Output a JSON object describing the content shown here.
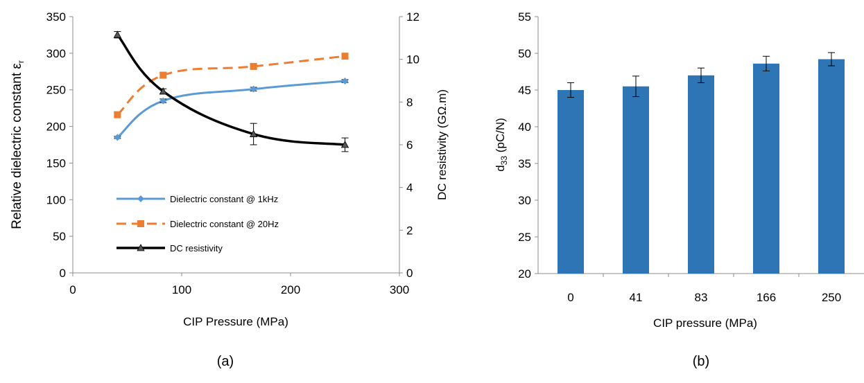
{
  "chart_data": [
    {
      "type": "line",
      "panel_label": "(a)",
      "xlabel": "CIP Pressure (MPa)",
      "ylabel": "Relative dielectric constant ε",
      "ylabel_sub": "r",
      "y2label": "DC resistivity (GΩ.m)",
      "xlim": [
        0,
        300
      ],
      "ylim": [
        0,
        350
      ],
      "y2lim": [
        0,
        12
      ],
      "xticks": [
        "0",
        "100",
        "200",
        "300"
      ],
      "yticks": [
        "0",
        "50",
        "100",
        "150",
        "200",
        "250",
        "300",
        "350"
      ],
      "y2ticks": [
        "0",
        "2",
        "4",
        "6",
        "8",
        "10",
        "12"
      ],
      "grid": false,
      "legend_position": "lower-left inside",
      "series": [
        {
          "name": "Dielectric constant @ 1kHz",
          "axis": "left",
          "color": "#5B9BD5",
          "style": "solid",
          "marker": "diamond",
          "x": [
            41,
            83,
            166,
            250
          ],
          "y": [
            185,
            235,
            251,
            262
          ],
          "err": [
            1.5,
            2.5,
            2.5,
            2
          ]
        },
        {
          "name": "Dielectric constant @ 20Hz",
          "axis": "left",
          "color": "#ED7D31",
          "style": "dashed",
          "marker": "square",
          "x": [
            41,
            83,
            166,
            250
          ],
          "y": [
            216,
            270,
            282,
            296
          ],
          "err": [
            4,
            4,
            3,
            2
          ]
        },
        {
          "name": "DC resistivity",
          "axis": "right",
          "color": "#000000",
          "style": "solid",
          "marker": "triangle",
          "x": [
            41,
            83,
            166,
            250
          ],
          "y": [
            11.15,
            8.5,
            6.5,
            6.0
          ],
          "err": [
            0.15,
            0.12,
            0.5,
            0.32
          ]
        }
      ]
    },
    {
      "type": "bar",
      "panel_label": "(b)",
      "xlabel": "CIP pressure (MPa)",
      "ylabel": "d",
      "ylabel_sub": "33",
      "ylabel_tail": " (pC/N)",
      "categories": [
        "0",
        "41",
        "83",
        "166",
        "250"
      ],
      "values": [
        45.0,
        45.5,
        47.0,
        48.6,
        49.2
      ],
      "err": [
        1.0,
        1.4,
        1.0,
        1.0,
        0.9
      ],
      "ylim": [
        20,
        55
      ],
      "yticks": [
        "20",
        "25",
        "30",
        "35",
        "40",
        "45",
        "50",
        "55"
      ],
      "bar_color": "#2E75B6",
      "grid": false
    }
  ]
}
